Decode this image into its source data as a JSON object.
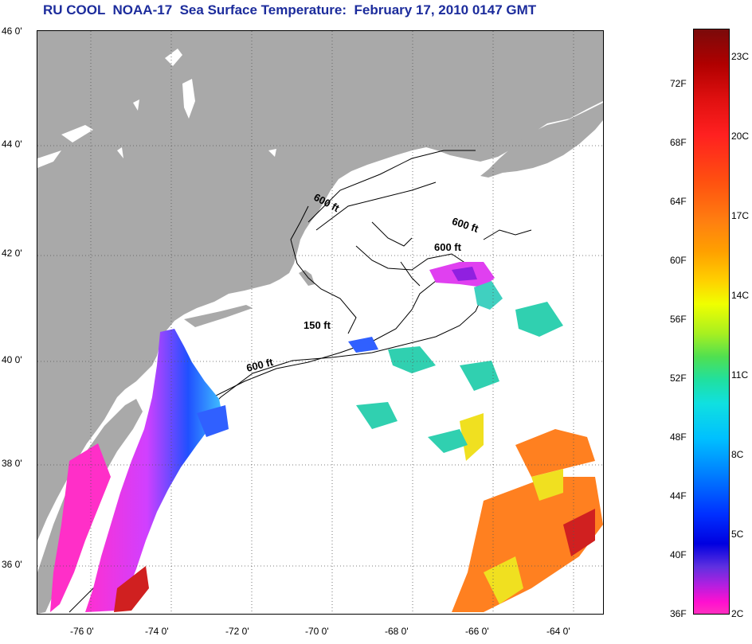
{
  "title": "RU COOL  NOAA-17  Sea Surface Temperature:  February 17, 2010 0147 GMT",
  "lat_labels": [
    "46 0'",
    "44 0'",
    "42 0'",
    "40 0'",
    "38 0'",
    "36 0'"
  ],
  "lon_labels": [
    "-76 0'",
    "-74 0'",
    "-72 0'",
    "-70 0'",
    "-68 0'",
    "-66 0'",
    "-64 0'"
  ],
  "contour_labels": [
    "600 ft",
    "600 ft",
    "600 ft",
    "150 ft",
    "600 ft"
  ],
  "colorbar": {
    "f_labels": [
      "72F",
      "68F",
      "64F",
      "60F",
      "56F",
      "52F",
      "48F",
      "44F",
      "40F",
      "36F"
    ],
    "c_labels": [
      "23C",
      "20C",
      "17C",
      "14C",
      "11C",
      "8C",
      "5C",
      "2C"
    ]
  },
  "colors": {
    "land": "#a9a9a9",
    "title": "#1c2c9c"
  }
}
